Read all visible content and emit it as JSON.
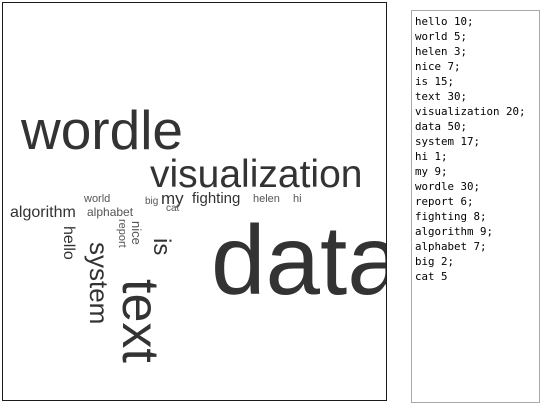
{
  "colors": {
    "word": "#333333",
    "small_word": "#555555",
    "canvas_border": "#1b1b1b",
    "input_border": "#a9a9a9"
  },
  "word_input": "hello 10;\nworld 5;\nhelen 3;\nnice 7;\nis 15;\ntext 30;\nvisualization 20;\ndata 50;\nsystem 17;\nhi 1;\nmy 9;\nwordle 30;\nreport 6;\nfighting 8;\nalgorithm 9;\nalphabet 7;\nbig 2;\ncat 5",
  "cloud_words": [
    {
      "text": "data",
      "weight": 50
    },
    {
      "text": "wordle",
      "weight": 30
    },
    {
      "text": "text",
      "weight": 30
    },
    {
      "text": "visualization",
      "weight": 20
    },
    {
      "text": "system",
      "weight": 17
    },
    {
      "text": "is",
      "weight": 15
    },
    {
      "text": "hello",
      "weight": 10
    },
    {
      "text": "algorithm",
      "weight": 9
    },
    {
      "text": "my",
      "weight": 9
    },
    {
      "text": "fighting",
      "weight": 8
    },
    {
      "text": "alphabet",
      "weight": 7
    },
    {
      "text": "nice",
      "weight": 7
    },
    {
      "text": "report",
      "weight": 6
    },
    {
      "text": "world",
      "weight": 5
    },
    {
      "text": "cat",
      "weight": 5
    },
    {
      "text": "helen",
      "weight": 3
    },
    {
      "text": "big",
      "weight": 2
    },
    {
      "text": "hi",
      "weight": 1
    }
  ]
}
